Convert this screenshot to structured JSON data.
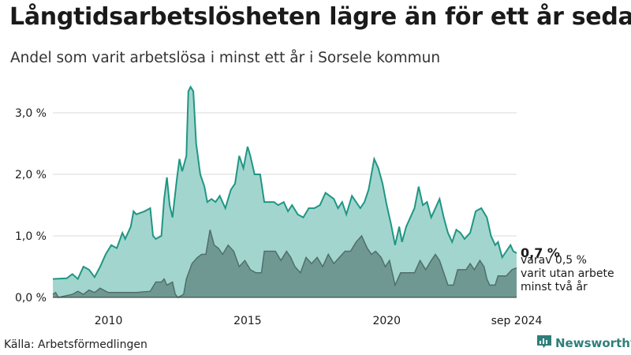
{
  "header": {
    "title": "Långtidsarbetslösheten lägre än för ett år sedan",
    "subtitle": "Andel som varit arbetslösa i minst ett år i Sorsele kommun"
  },
  "footer": {
    "source": "Källa: Arbetsförmedlingen",
    "brand": "Newsworthy"
  },
  "colors": {
    "total_line": "#1f9683",
    "total_fill": "#a3d5cf",
    "sub_line": "#4f6f69",
    "sub_fill": "#709892",
    "text": "#1a1a1a"
  },
  "icons": {
    "brand_logo": "bar-chart-icon"
  },
  "chart_data": {
    "type": "area",
    "title": "Långtidsarbetslösheten lägre än för ett år sedan",
    "subtitle": "Andel som varit arbetslösa i minst ett år i Sorsele kommun",
    "xlabel": "",
    "ylabel": "",
    "ylim": [
      0,
      3.5
    ],
    "y_ticks": [
      "0,0 %",
      "1,0 %",
      "2,0 %",
      "3,0 %"
    ],
    "y_tick_values": [
      0,
      1,
      2,
      3
    ],
    "x_ticks": [
      "2010",
      "2015",
      "2020",
      "sep 2024"
    ],
    "x_tick_values": [
      2010.0,
      2015.0,
      2020.0,
      2024.67
    ],
    "grid": "horizontal",
    "annotations": {
      "last_value": "0,7 %",
      "sub_note_line1": "varav 0,5 %",
      "sub_note_line2": "varit utan arbete",
      "sub_note_line3": "minst två år"
    },
    "series": [
      {
        "name": "",
        "points": [
          [
            2008.0,
            0.3
          ],
          [
            2008.5,
            0.31
          ],
          [
            2008.7,
            0.38
          ],
          [
            2008.9,
            0.3
          ],
          [
            2009.1,
            0.5
          ],
          [
            2009.3,
            0.45
          ],
          [
            2009.5,
            0.33
          ],
          [
            2009.7,
            0.5
          ],
          [
            2009.9,
            0.7
          ],
          [
            2010.1,
            0.85
          ],
          [
            2010.3,
            0.8
          ],
          [
            2010.5,
            1.05
          ],
          [
            2010.6,
            0.95
          ],
          [
            2010.8,
            1.15
          ],
          [
            2010.9,
            1.4
          ],
          [
            2011.0,
            1.35
          ],
          [
            2011.3,
            1.4
          ],
          [
            2011.5,
            1.45
          ],
          [
            2011.6,
            1.0
          ],
          [
            2011.7,
            0.95
          ],
          [
            2011.9,
            1.0
          ],
          [
            2012.0,
            1.6
          ],
          [
            2012.1,
            1.95
          ],
          [
            2012.2,
            1.5
          ],
          [
            2012.3,
            1.3
          ],
          [
            2012.45,
            1.9
          ],
          [
            2012.55,
            2.25
          ],
          [
            2012.65,
            2.05
          ],
          [
            2012.8,
            2.3
          ],
          [
            2012.87,
            3.35
          ],
          [
            2012.95,
            3.42
          ],
          [
            2013.05,
            3.35
          ],
          [
            2013.15,
            2.5
          ],
          [
            2013.3,
            2.0
          ],
          [
            2013.45,
            1.8
          ],
          [
            2013.55,
            1.55
          ],
          [
            2013.7,
            1.6
          ],
          [
            2013.85,
            1.55
          ],
          [
            2014.0,
            1.65
          ],
          [
            2014.2,
            1.45
          ],
          [
            2014.4,
            1.75
          ],
          [
            2014.55,
            1.85
          ],
          [
            2014.7,
            2.3
          ],
          [
            2014.85,
            2.1
          ],
          [
            2015.0,
            2.45
          ],
          [
            2015.1,
            2.3
          ],
          [
            2015.25,
            2.0
          ],
          [
            2015.45,
            2.0
          ],
          [
            2015.6,
            1.55
          ],
          [
            2015.8,
            1.55
          ],
          [
            2015.95,
            1.55
          ],
          [
            2016.1,
            1.5
          ],
          [
            2016.3,
            1.55
          ],
          [
            2016.45,
            1.4
          ],
          [
            2016.6,
            1.5
          ],
          [
            2016.8,
            1.35
          ],
          [
            2017.0,
            1.3
          ],
          [
            2017.2,
            1.45
          ],
          [
            2017.4,
            1.45
          ],
          [
            2017.6,
            1.5
          ],
          [
            2017.8,
            1.7
          ],
          [
            2017.95,
            1.65
          ],
          [
            2018.1,
            1.6
          ],
          [
            2018.25,
            1.45
          ],
          [
            2018.4,
            1.55
          ],
          [
            2018.55,
            1.35
          ],
          [
            2018.75,
            1.65
          ],
          [
            2018.9,
            1.55
          ],
          [
            2019.05,
            1.45
          ],
          [
            2019.2,
            1.55
          ],
          [
            2019.35,
            1.75
          ],
          [
            2019.45,
            2.0
          ],
          [
            2019.55,
            2.25
          ],
          [
            2019.7,
            2.1
          ],
          [
            2019.85,
            1.85
          ],
          [
            2020.0,
            1.5
          ],
          [
            2020.15,
            1.2
          ],
          [
            2020.3,
            0.85
          ],
          [
            2020.45,
            1.15
          ],
          [
            2020.55,
            0.9
          ],
          [
            2020.7,
            1.15
          ],
          [
            2020.85,
            1.3
          ],
          [
            2021.0,
            1.45
          ],
          [
            2021.15,
            1.8
          ],
          [
            2021.3,
            1.5
          ],
          [
            2021.45,
            1.55
          ],
          [
            2021.6,
            1.3
          ],
          [
            2021.75,
            1.45
          ],
          [
            2021.9,
            1.6
          ],
          [
            2022.05,
            1.3
          ],
          [
            2022.2,
            1.05
          ],
          [
            2022.35,
            0.9
          ],
          [
            2022.5,
            1.1
          ],
          [
            2022.65,
            1.05
          ],
          [
            2022.8,
            0.95
          ],
          [
            2023.0,
            1.05
          ],
          [
            2023.2,
            1.4
          ],
          [
            2023.4,
            1.45
          ],
          [
            2023.6,
            1.3
          ],
          [
            2023.75,
            1.0
          ],
          [
            2023.9,
            0.85
          ],
          [
            2024.0,
            0.9
          ],
          [
            2024.15,
            0.65
          ],
          [
            2024.3,
            0.75
          ],
          [
            2024.45,
            0.85
          ],
          [
            2024.55,
            0.75
          ],
          [
            2024.67,
            0.72
          ]
        ]
      },
      {
        "name": "",
        "points": [
          [
            2008.0,
            0.05
          ],
          [
            2008.1,
            0.08
          ],
          [
            2008.2,
            0.0
          ],
          [
            2008.7,
            0.05
          ],
          [
            2008.9,
            0.1
          ],
          [
            2009.1,
            0.05
          ],
          [
            2009.3,
            0.12
          ],
          [
            2009.5,
            0.08
          ],
          [
            2009.7,
            0.15
          ],
          [
            2009.9,
            0.1
          ],
          [
            2010.0,
            0.08
          ],
          [
            2010.5,
            0.08
          ],
          [
            2011.0,
            0.08
          ],
          [
            2011.5,
            0.1
          ],
          [
            2011.7,
            0.25
          ],
          [
            2011.9,
            0.25
          ],
          [
            2012.0,
            0.3
          ],
          [
            2012.1,
            0.2
          ],
          [
            2012.3,
            0.25
          ],
          [
            2012.4,
            0.05
          ],
          [
            2012.5,
            0.0
          ],
          [
            2012.7,
            0.05
          ],
          [
            2012.8,
            0.3
          ],
          [
            2013.0,
            0.55
          ],
          [
            2013.2,
            0.65
          ],
          [
            2013.35,
            0.7
          ],
          [
            2013.5,
            0.7
          ],
          [
            2013.65,
            1.1
          ],
          [
            2013.8,
            0.85
          ],
          [
            2013.95,
            0.8
          ],
          [
            2014.1,
            0.7
          ],
          [
            2014.3,
            0.85
          ],
          [
            2014.5,
            0.75
          ],
          [
            2014.7,
            0.5
          ],
          [
            2014.9,
            0.6
          ],
          [
            2015.1,
            0.45
          ],
          [
            2015.3,
            0.4
          ],
          [
            2015.5,
            0.4
          ],
          [
            2015.6,
            0.75
          ],
          [
            2015.8,
            0.75
          ],
          [
            2016.0,
            0.75
          ],
          [
            2016.2,
            0.6
          ],
          [
            2016.4,
            0.75
          ],
          [
            2016.55,
            0.65
          ],
          [
            2016.7,
            0.5
          ],
          [
            2016.9,
            0.4
          ],
          [
            2017.1,
            0.65
          ],
          [
            2017.3,
            0.55
          ],
          [
            2017.5,
            0.65
          ],
          [
            2017.7,
            0.5
          ],
          [
            2017.9,
            0.7
          ],
          [
            2018.1,
            0.55
          ],
          [
            2018.3,
            0.65
          ],
          [
            2018.5,
            0.75
          ],
          [
            2018.7,
            0.75
          ],
          [
            2018.9,
            0.9
          ],
          [
            2019.1,
            1.0
          ],
          [
            2019.3,
            0.8
          ],
          [
            2019.45,
            0.7
          ],
          [
            2019.6,
            0.75
          ],
          [
            2019.8,
            0.65
          ],
          [
            2019.95,
            0.5
          ],
          [
            2020.1,
            0.6
          ],
          [
            2020.3,
            0.2
          ],
          [
            2020.5,
            0.4
          ],
          [
            2021.0,
            0.4
          ],
          [
            2021.2,
            0.6
          ],
          [
            2021.4,
            0.45
          ],
          [
            2021.6,
            0.6
          ],
          [
            2021.75,
            0.7
          ],
          [
            2021.9,
            0.6
          ],
          [
            2022.05,
            0.4
          ],
          [
            2022.2,
            0.2
          ],
          [
            2022.4,
            0.2
          ],
          [
            2022.55,
            0.45
          ],
          [
            2022.7,
            0.45
          ],
          [
            2022.85,
            0.45
          ],
          [
            2023.0,
            0.55
          ],
          [
            2023.15,
            0.45
          ],
          [
            2023.35,
            0.6
          ],
          [
            2023.5,
            0.5
          ],
          [
            2023.6,
            0.3
          ],
          [
            2023.7,
            0.2
          ],
          [
            2023.9,
            0.2
          ],
          [
            2024.0,
            0.35
          ],
          [
            2024.3,
            0.35
          ],
          [
            2024.5,
            0.45
          ],
          [
            2024.67,
            0.48
          ]
        ]
      }
    ]
  }
}
